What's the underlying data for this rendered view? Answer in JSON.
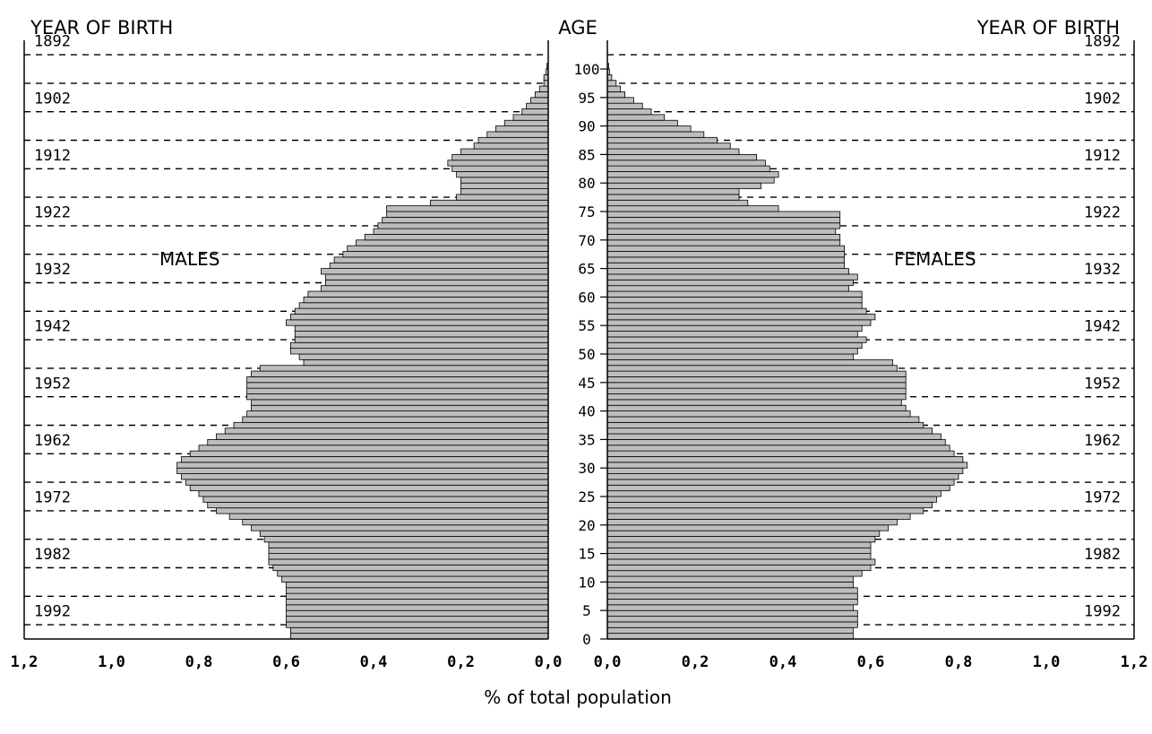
{
  "chart_data": {
    "type": "bar",
    "orientation": "horizontal",
    "subtype": "population pyramid",
    "headers": {
      "left": "YEAR OF BIRTH",
      "center": "AGE",
      "right": "YEAR OF BIRTH"
    },
    "xlabel": "% of total population",
    "x_ticks": [
      "1,2",
      "1,0",
      "0,8",
      "0,6",
      "0,4",
      "0,2",
      "0,0"
    ],
    "x_range": [
      0,
      1.2
    ],
    "age_ticks": [
      0,
      5,
      10,
      15,
      20,
      25,
      30,
      35,
      40,
      45,
      50,
      55,
      60,
      65,
      70,
      75,
      80,
      85,
      90,
      95,
      100
    ],
    "age_range": [
      0,
      100
    ],
    "birth_year_ticks": [
      1892,
      1902,
      1912,
      1922,
      1932,
      1942,
      1952,
      1962,
      1972,
      1982,
      1992
    ],
    "series": [
      {
        "name": "MALES",
        "side": "left",
        "ages": [
          0,
          1,
          2,
          3,
          4,
          5,
          6,
          7,
          8,
          9,
          10,
          11,
          12,
          13,
          14,
          15,
          16,
          17,
          18,
          19,
          20,
          21,
          22,
          23,
          24,
          25,
          26,
          27,
          28,
          29,
          30,
          31,
          32,
          33,
          34,
          35,
          36,
          37,
          38,
          39,
          40,
          41,
          42,
          43,
          44,
          45,
          46,
          47,
          48,
          49,
          50,
          51,
          52,
          53,
          54,
          55,
          56,
          57,
          58,
          59,
          60,
          61,
          62,
          63,
          64,
          65,
          66,
          67,
          68,
          69,
          70,
          71,
          72,
          73,
          74,
          75,
          76,
          77,
          78,
          79,
          80,
          81,
          82,
          83,
          84,
          85,
          86,
          87,
          88,
          89,
          90,
          91,
          92,
          93,
          94,
          95,
          96,
          97,
          98,
          99,
          100
        ],
        "values": [
          0.59,
          0.59,
          0.6,
          0.6,
          0.6,
          0.6,
          0.6,
          0.6,
          0.6,
          0.6,
          0.61,
          0.62,
          0.63,
          0.64,
          0.64,
          0.64,
          0.64,
          0.65,
          0.66,
          0.68,
          0.7,
          0.73,
          0.76,
          0.78,
          0.79,
          0.8,
          0.82,
          0.83,
          0.84,
          0.85,
          0.85,
          0.84,
          0.82,
          0.8,
          0.78,
          0.76,
          0.74,
          0.72,
          0.7,
          0.69,
          0.68,
          0.68,
          0.69,
          0.69,
          0.69,
          0.69,
          0.68,
          0.66,
          0.56,
          0.57,
          0.59,
          0.59,
          0.58,
          0.58,
          0.58,
          0.6,
          0.59,
          0.58,
          0.57,
          0.56,
          0.55,
          0.52,
          0.51,
          0.51,
          0.52,
          0.5,
          0.49,
          0.47,
          0.46,
          0.44,
          0.42,
          0.4,
          0.39,
          0.38,
          0.37,
          0.37,
          0.27,
          0.21,
          0.2,
          0.2,
          0.2,
          0.21,
          0.22,
          0.23,
          0.22,
          0.2,
          0.17,
          0.16,
          0.14,
          0.12,
          0.1,
          0.08,
          0.06,
          0.05,
          0.04,
          0.03,
          0.02,
          0.01,
          0.01,
          0.005,
          0.003
        ]
      },
      {
        "name": "FEMALES",
        "side": "right",
        "ages": [
          0,
          1,
          2,
          3,
          4,
          5,
          6,
          7,
          8,
          9,
          10,
          11,
          12,
          13,
          14,
          15,
          16,
          17,
          18,
          19,
          20,
          21,
          22,
          23,
          24,
          25,
          26,
          27,
          28,
          29,
          30,
          31,
          32,
          33,
          34,
          35,
          36,
          37,
          38,
          39,
          40,
          41,
          42,
          43,
          44,
          45,
          46,
          47,
          48,
          49,
          50,
          51,
          52,
          53,
          54,
          55,
          56,
          57,
          58,
          59,
          60,
          61,
          62,
          63,
          64,
          65,
          66,
          67,
          68,
          69,
          70,
          71,
          72,
          73,
          74,
          75,
          76,
          77,
          78,
          79,
          80,
          81,
          82,
          83,
          84,
          85,
          86,
          87,
          88,
          89,
          90,
          91,
          92,
          93,
          94,
          95,
          96,
          97,
          98,
          99,
          100
        ],
        "values": [
          0.56,
          0.56,
          0.57,
          0.57,
          0.57,
          0.56,
          0.57,
          0.57,
          0.57,
          0.56,
          0.56,
          0.58,
          0.6,
          0.61,
          0.6,
          0.6,
          0.6,
          0.61,
          0.62,
          0.64,
          0.66,
          0.69,
          0.72,
          0.74,
          0.75,
          0.76,
          0.78,
          0.79,
          0.8,
          0.81,
          0.82,
          0.81,
          0.79,
          0.78,
          0.77,
          0.76,
          0.74,
          0.72,
          0.71,
          0.69,
          0.68,
          0.67,
          0.68,
          0.68,
          0.68,
          0.68,
          0.68,
          0.66,
          0.65,
          0.56,
          0.57,
          0.58,
          0.59,
          0.57,
          0.58,
          0.6,
          0.61,
          0.59,
          0.58,
          0.58,
          0.58,
          0.55,
          0.56,
          0.57,
          0.55,
          0.54,
          0.54,
          0.54,
          0.54,
          0.53,
          0.53,
          0.52,
          0.53,
          0.53,
          0.53,
          0.39,
          0.32,
          0.3,
          0.3,
          0.35,
          0.38,
          0.39,
          0.37,
          0.36,
          0.34,
          0.3,
          0.28,
          0.25,
          0.22,
          0.19,
          0.16,
          0.13,
          0.1,
          0.08,
          0.06,
          0.04,
          0.03,
          0.02,
          0.01,
          0.005,
          0.003
        ]
      }
    ],
    "labels": {
      "males": "MALES",
      "females": "FEMALES"
    },
    "grid": "dashed horizontal lines every 5 years of age",
    "bar_color": "#bdbdbd",
    "bar_edge_color": "#000000"
  }
}
